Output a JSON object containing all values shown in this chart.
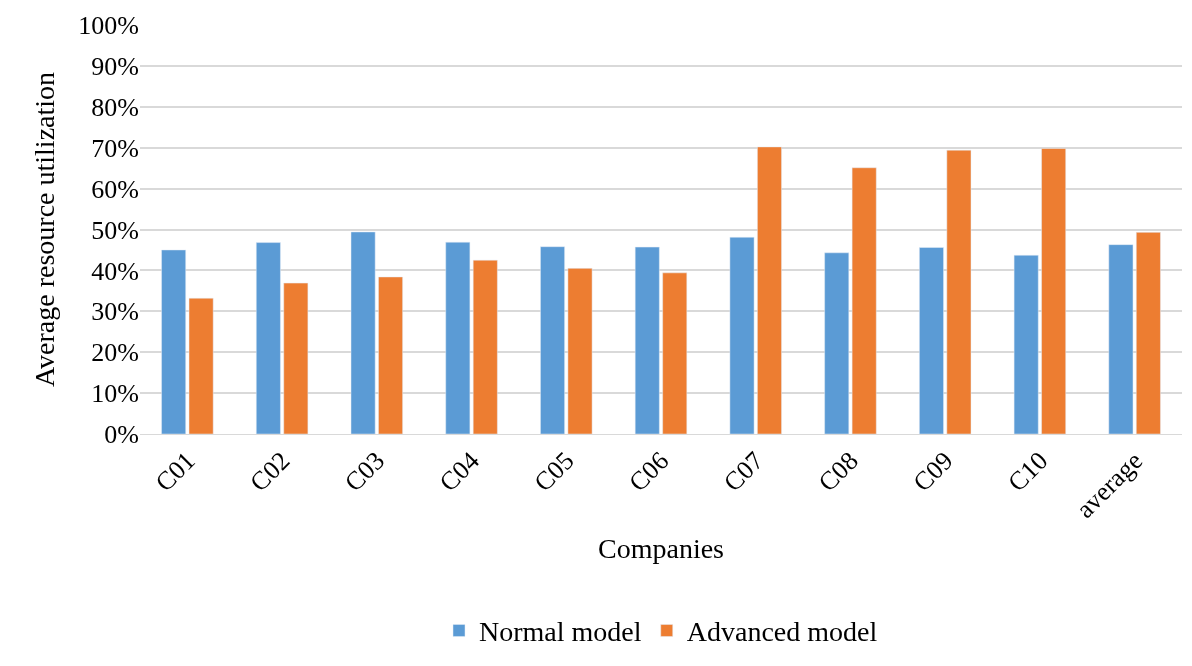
{
  "chart_data": {
    "type": "bar",
    "xlabel": "Companies",
    "ylabel": "Average resource utilization",
    "categories": [
      "C01",
      "C02",
      "C03",
      "C04",
      "C05",
      "C06",
      "C07",
      "C08",
      "C09",
      "C10",
      "average"
    ],
    "series": [
      {
        "name": "Normal model",
        "color": "#5b9bd5",
        "values": [
          45.0,
          46.8,
          49.4,
          46.9,
          45.8,
          45.7,
          48.1,
          44.3,
          45.6,
          43.7,
          46.3
        ]
      },
      {
        "name": "Advanced model",
        "color": "#ed7d31",
        "values": [
          33.2,
          36.9,
          38.4,
          42.5,
          40.5,
          39.4,
          70.2,
          65.1,
          69.4,
          69.8,
          49.3
        ]
      }
    ],
    "ylim": [
      0,
      100
    ],
    "yticks": [
      {
        "value": 0,
        "label": "0%"
      },
      {
        "value": 10,
        "label": "10%"
      },
      {
        "value": 20,
        "label": "20%"
      },
      {
        "value": 30,
        "label": "30%"
      },
      {
        "value": 40,
        "label": "40%"
      },
      {
        "value": 50,
        "label": "50%"
      },
      {
        "value": 60,
        "label": "60%"
      },
      {
        "value": 70,
        "label": "70%"
      },
      {
        "value": 80,
        "label": "80%"
      },
      {
        "value": 90,
        "label": "90%"
      },
      {
        "value": 100,
        "label": "100%"
      }
    ],
    "grid": "y",
    "legend": "bottom"
  }
}
